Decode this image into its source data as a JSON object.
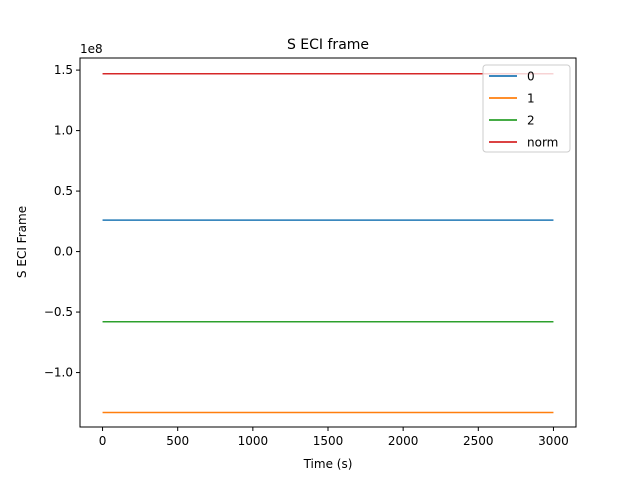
{
  "chart_data": {
    "type": "line",
    "title": "S ECI frame",
    "xlabel": "Time (s)",
    "ylabel": "S ECI Frame",
    "y_offset_label": "1e8",
    "xlim": [
      -150,
      3150
    ],
    "ylim": [
      -1.45,
      1.6
    ],
    "x_ticks": [
      0,
      500,
      1000,
      1500,
      2000,
      2500,
      3000
    ],
    "x_tick_labels": [
      "0",
      "500",
      "1000",
      "1500",
      "2000",
      "2500",
      "3000"
    ],
    "y_ticks": [
      -1.0,
      -0.5,
      0.0,
      0.5,
      1.0,
      1.5
    ],
    "y_tick_labels": [
      "−1.0",
      "−0.5",
      "0.0",
      "0.5",
      "1.0",
      "1.5"
    ],
    "grid": false,
    "legend_position": "top-right",
    "x": [
      0,
      3000
    ],
    "series": [
      {
        "name": "0",
        "color": "#1f77b4",
        "values": [
          0.26,
          0.26
        ]
      },
      {
        "name": "1",
        "color": "#ff7f0e",
        "values": [
          -1.33,
          -1.33
        ]
      },
      {
        "name": "2",
        "color": "#2ca02c",
        "values": [
          -0.58,
          -0.58
        ]
      },
      {
        "name": "norm",
        "color": "#d62728",
        "values": [
          1.47,
          1.47
        ]
      }
    ]
  }
}
